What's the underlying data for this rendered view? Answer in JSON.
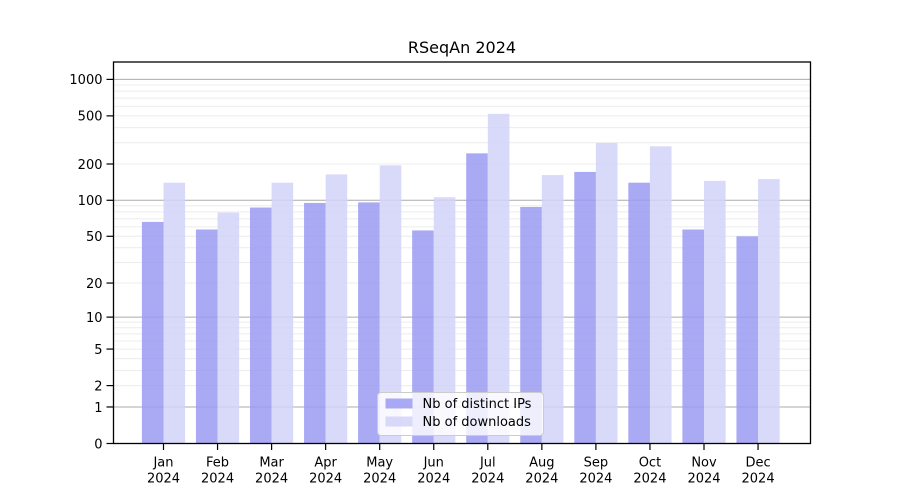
{
  "title": "RSeqAn 2024",
  "chart_data": {
    "type": "bar",
    "title": "RSeqAn 2024",
    "categories": [
      "Jan",
      "Feb",
      "Mar",
      "Apr",
      "May",
      "Jun",
      "Jul",
      "Aug",
      "Sep",
      "Oct",
      "Nov",
      "Dec"
    ],
    "category_year": "2024",
    "series": [
      {
        "key": "ips",
        "name": "Nb of distinct IPs",
        "color": "#9a9af2",
        "values": [
          66,
          57,
          87,
          95,
          96,
          56,
          245,
          88,
          172,
          140,
          57,
          50
        ]
      },
      {
        "key": "downloads",
        "name": "Nb of downloads",
        "color": "#d2d2f8",
        "values": [
          140,
          79,
          140,
          164,
          195,
          106,
          520,
          162,
          298,
          280,
          145,
          150
        ]
      }
    ],
    "xlabel": "",
    "ylabel": "",
    "yaxis": {
      "scale": "log1p",
      "ticks": [
        0,
        1,
        2,
        5,
        10,
        20,
        50,
        100,
        200,
        500,
        1000
      ],
      "tick_labels": [
        "0",
        "1",
        "2",
        "5",
        "10",
        "20",
        "50",
        "100",
        "200",
        "500",
        "1000"
      ],
      "major_gridlines": [
        1,
        10,
        100,
        1000
      ],
      "minor_gridlines": [
        2,
        3,
        4,
        5,
        6,
        7,
        8,
        9,
        20,
        30,
        40,
        50,
        60,
        70,
        80,
        90,
        200,
        300,
        400,
        500,
        600,
        700,
        800,
        900
      ],
      "ylim": [
        0,
        1385
      ]
    },
    "grid": true,
    "legend": {
      "position": "lower center",
      "labels": [
        "Nb of distinct IPs",
        "Nb of downloads"
      ]
    },
    "colors": {
      "bar_ips": "#9a9af2",
      "bar_downloads": "#d2d2f8",
      "bar_opacity": 0.85,
      "grid_major": "#ababab",
      "grid_minor": "#ececec",
      "spine": "#000000",
      "legend_border": "#cccccc",
      "legend_background": "#ffffff",
      "background": "#ffffff",
      "text": "#000000"
    }
  }
}
